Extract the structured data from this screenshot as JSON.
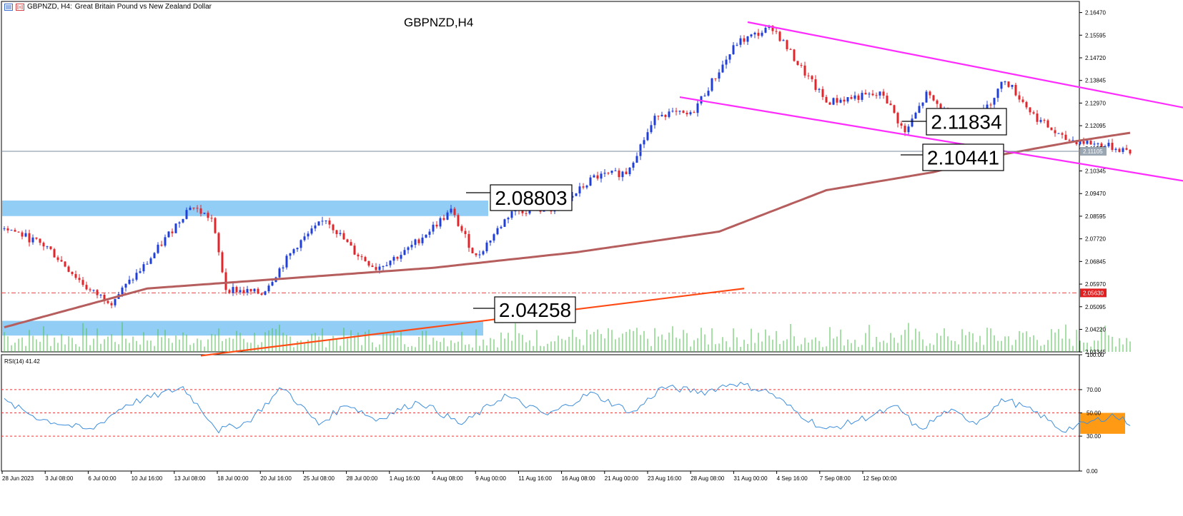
{
  "header": {
    "symbol_text": "GBPNZD, H4:",
    "description": "Great Britain Pound vs New Zealand Dollar"
  },
  "chart_title": "GBPNZD,H4",
  "price_scale": [
    "2.16470",
    "2.15595",
    "2.14720",
    "2.13845",
    "2.12970",
    "2.12095",
    "2.11220",
    "2.10345",
    "2.09470",
    "2.08595",
    "2.07720",
    "2.06845",
    "2.05970",
    "2.05095",
    "2.04220",
    "2.03345"
  ],
  "current_price_label": "2.11105",
  "dashed_level_label": "2.05630",
  "rsi": {
    "label": "RSI(14) 41.42",
    "scale": [
      "100.00",
      "70.00",
      "50.00",
      "30.00",
      "0.00"
    ]
  },
  "time_labels": [
    "28 Jun 2023",
    "3 Jul 08:00",
    "6 Jul 00:00",
    "10 Jul 16:00",
    "13 Jul 08:00",
    "18 Jul 00:00",
    "20 Jul 16:00",
    "25 Jul 08:00",
    "28 Jul 00:00",
    "1 Aug 16:00",
    "4 Aug 08:00",
    "9 Aug 00:00",
    "11 Aug 16:00",
    "16 Aug 08:00",
    "21 Aug 00:00",
    "23 Aug 16:00",
    "28 Aug 08:00",
    "31 Aug 00:00",
    "4 Sep 16:00",
    "7 Sep 08:00",
    "12 Sep 00:00"
  ],
  "annotations": {
    "upper_target": "2.11834",
    "lower_target": "2.10441",
    "resistance": "2.08803",
    "support": "2.04258"
  },
  "colors": {
    "bull": "#1f3fd8",
    "bear": "#e0252b",
    "ma": "#b65e5e",
    "channel": "#ff2bff",
    "trendline": "#ff4a14",
    "zone": "#86c8f5",
    "volume": "#4ec24e",
    "rsi_line": "#3f8fdc",
    "rsi_highlight": "#ff9a14",
    "dashed_level": "#e84545"
  },
  "chart_data": {
    "type": "candlestick",
    "title": "GBPNZD,H4",
    "symbol": "GBPNZD",
    "timeframe": "H4",
    "ylim": [
      2.0335,
      2.169
    ],
    "y_ticks": [
      2.1647,
      2.15595,
      2.1472,
      2.13845,
      2.1297,
      2.12095,
      2.1122,
      2.10345,
      2.0947,
      2.08595,
      2.0772,
      2.06845,
      2.0597,
      2.05095,
      2.0422,
      2.03345
    ],
    "key_points": [
      {
        "bar": 0,
        "price": 2.082
      },
      {
        "bar": 12,
        "price": 2.074
      },
      {
        "bar": 24,
        "price": 2.057
      },
      {
        "bar": 30,
        "price": 2.053
      },
      {
        "bar": 40,
        "price": 2.068
      },
      {
        "bar": 52,
        "price": 2.09
      },
      {
        "bar": 58,
        "price": 2.085
      },
      {
        "bar": 62,
        "price": 2.058
      },
      {
        "bar": 72,
        "price": 2.056
      },
      {
        "bar": 82,
        "price": 2.075
      },
      {
        "bar": 90,
        "price": 2.085
      },
      {
        "bar": 98,
        "price": 2.072
      },
      {
        "bar": 104,
        "price": 2.066
      },
      {
        "bar": 112,
        "price": 2.072
      },
      {
        "bar": 125,
        "price": 2.088
      },
      {
        "bar": 132,
        "price": 2.07
      },
      {
        "bar": 142,
        "price": 2.088
      },
      {
        "bar": 155,
        "price": 2.089
      },
      {
        "bar": 165,
        "price": 2.101
      },
      {
        "bar": 174,
        "price": 2.103
      },
      {
        "bar": 183,
        "price": 2.126
      },
      {
        "bar": 192,
        "price": 2.125
      },
      {
        "bar": 205,
        "price": 2.153
      },
      {
        "bar": 215,
        "price": 2.159
      },
      {
        "bar": 222,
        "price": 2.145
      },
      {
        "bar": 230,
        "price": 2.13
      },
      {
        "bar": 238,
        "price": 2.132
      },
      {
        "bar": 246,
        "price": 2.133
      },
      {
        "bar": 252,
        "price": 2.118
      },
      {
        "bar": 258,
        "price": 2.133
      },
      {
        "bar": 265,
        "price": 2.124
      },
      {
        "bar": 272,
        "price": 2.122
      },
      {
        "bar": 280,
        "price": 2.139
      },
      {
        "bar": 288,
        "price": 2.125
      },
      {
        "bar": 296,
        "price": 2.116
      },
      {
        "bar": 305,
        "price": 2.114
      },
      {
        "bar": 315,
        "price": 2.1112
      }
    ],
    "moving_average": [
      {
        "bar": 0,
        "price": 2.043
      },
      {
        "bar": 40,
        "price": 2.058
      },
      {
        "bar": 80,
        "price": 2.062
      },
      {
        "bar": 120,
        "price": 2.066
      },
      {
        "bar": 160,
        "price": 2.072
      },
      {
        "bar": 200,
        "price": 2.08
      },
      {
        "bar": 230,
        "price": 2.096
      },
      {
        "bar": 260,
        "price": 2.103
      },
      {
        "bar": 280,
        "price": 2.11
      },
      {
        "bar": 300,
        "price": 2.115
      },
      {
        "bar": 315,
        "price": 2.1182
      }
    ],
    "channel_upper": [
      {
        "bar": 208,
        "price": 2.161
      },
      {
        "bar": 350,
        "price": 2.1225
      }
    ],
    "channel_lower": [
      {
        "bar": 189,
        "price": 2.132
      },
      {
        "bar": 350,
        "price": 2.095
      }
    ],
    "trendline": [
      {
        "bar": 55,
        "price": 2.032
      },
      {
        "bar": 207,
        "price": 2.058
      }
    ],
    "dashed_level": 2.0563,
    "zones": [
      {
        "from": 2.086,
        "to": 2.092,
        "label": "2.08803"
      },
      {
        "from": 2.0398,
        "to": 2.0455,
        "label": "2.04258"
      }
    ],
    "current_price": 2.11105,
    "rsi": {
      "period": 14,
      "value": 41.42,
      "ylim": [
        0,
        100
      ],
      "levels": [
        70,
        50,
        30
      ],
      "key_points": [
        {
          "bar": 0,
          "value": 60
        },
        {
          "bar": 10,
          "value": 45
        },
        {
          "bar": 24,
          "value": 35
        },
        {
          "bar": 34,
          "value": 57
        },
        {
          "bar": 50,
          "value": 72
        },
        {
          "bar": 60,
          "value": 35
        },
        {
          "bar": 68,
          "value": 42
        },
        {
          "bar": 78,
          "value": 72
        },
        {
          "bar": 88,
          "value": 40
        },
        {
          "bar": 96,
          "value": 58
        },
        {
          "bar": 104,
          "value": 44
        },
        {
          "bar": 116,
          "value": 60
        },
        {
          "bar": 128,
          "value": 40
        },
        {
          "bar": 140,
          "value": 65
        },
        {
          "bar": 152,
          "value": 48
        },
        {
          "bar": 164,
          "value": 67
        },
        {
          "bar": 176,
          "value": 50
        },
        {
          "bar": 184,
          "value": 72
        },
        {
          "bar": 196,
          "value": 68
        },
        {
          "bar": 204,
          "value": 76
        },
        {
          "bar": 214,
          "value": 68
        },
        {
          "bar": 222,
          "value": 50
        },
        {
          "bar": 230,
          "value": 35
        },
        {
          "bar": 240,
          "value": 45
        },
        {
          "bar": 250,
          "value": 55
        },
        {
          "bar": 256,
          "value": 35
        },
        {
          "bar": 264,
          "value": 52
        },
        {
          "bar": 272,
          "value": 42
        },
        {
          "bar": 280,
          "value": 62
        },
        {
          "bar": 290,
          "value": 48
        },
        {
          "bar": 296,
          "value": 35
        },
        {
          "bar": 304,
          "value": 42
        },
        {
          "bar": 310,
          "value": 48
        },
        {
          "bar": 315,
          "value": 41.42
        }
      ]
    }
  }
}
